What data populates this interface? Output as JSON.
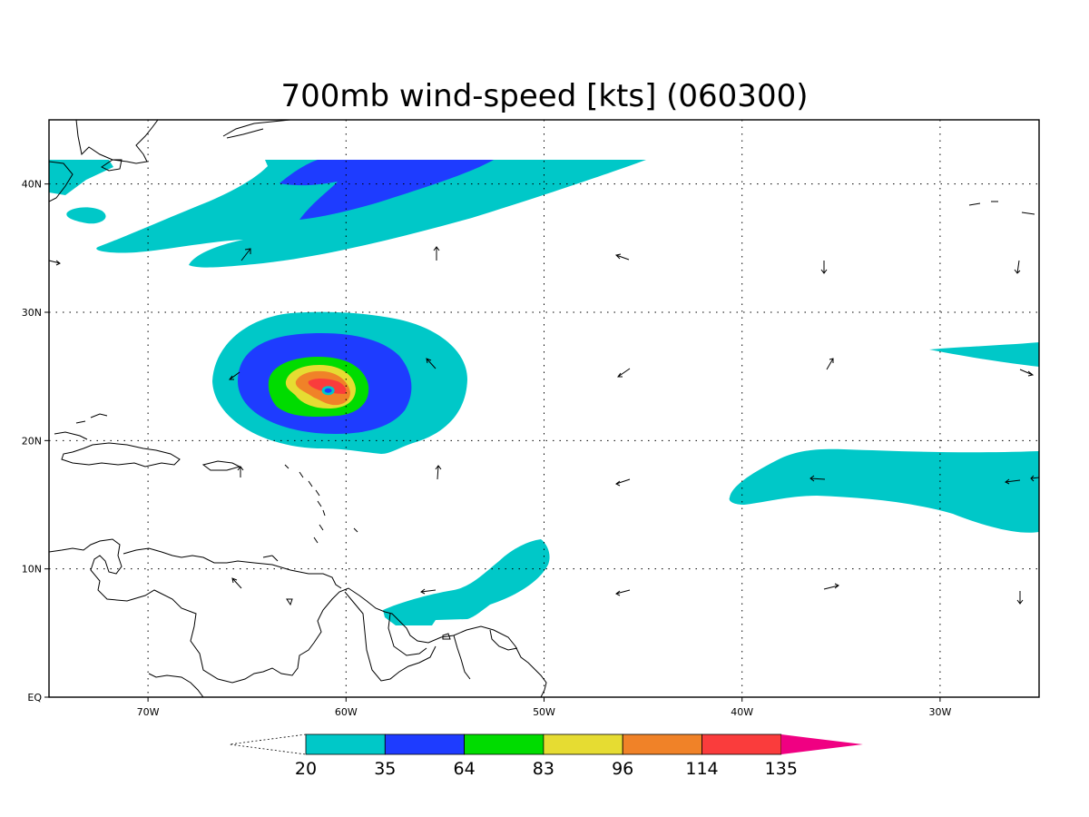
{
  "title": "700mb wind-speed [kts] (060300)",
  "colors": {
    "c20": "#00c8c8",
    "c35": "#1e3cff",
    "c64": "#00dc00",
    "c83": "#e6dc32",
    "c96": "#f08228",
    "c114": "#fa3c3c",
    "c135": "#f00082",
    "eye": "#1e3cff"
  },
  "map": {
    "lon_range": [
      -75,
      -25
    ],
    "lat_range": [
      0,
      45
    ],
    "x_ticks": [
      {
        "lon": -70,
        "label": "70W"
      },
      {
        "lon": -60,
        "label": "60W"
      },
      {
        "lon": -50,
        "label": "50W"
      },
      {
        "lon": -40,
        "label": "40W"
      },
      {
        "lon": -30,
        "label": "30W"
      }
    ],
    "y_ticks": [
      {
        "lat": 0,
        "label": "EQ"
      },
      {
        "lat": 10,
        "label": "10N"
      },
      {
        "lat": 20,
        "label": "20N"
      },
      {
        "lat": 30,
        "label": "30N"
      },
      {
        "lat": 40,
        "label": "40N"
      }
    ]
  },
  "colorbar": {
    "levels": [
      {
        "label": "20",
        "color": "#00c8c8"
      },
      {
        "label": "35",
        "color": "#1e3cff"
      },
      {
        "label": "64",
        "color": "#00dc00"
      },
      {
        "label": "83",
        "color": "#e6dc32"
      },
      {
        "label": "96",
        "color": "#f08228"
      },
      {
        "label": "114",
        "color": "#fa3c3c"
      },
      {
        "label": "135",
        "color": "#f00082"
      }
    ]
  },
  "hurricane_center": {
    "lon": -60.9,
    "lat": 23.9
  }
}
